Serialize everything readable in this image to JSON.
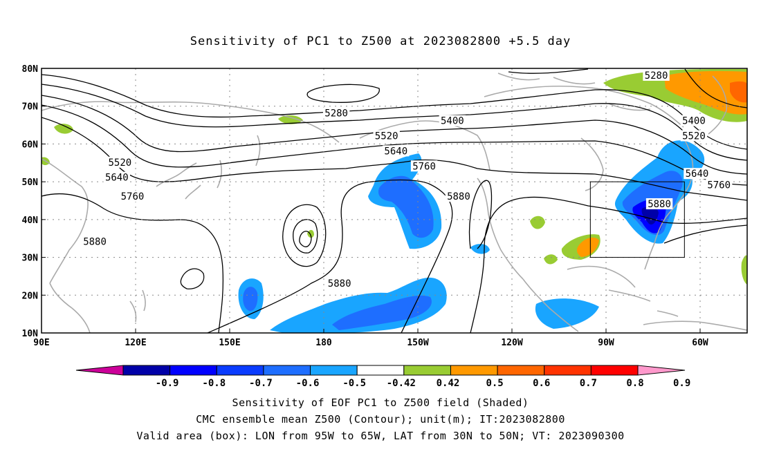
{
  "title": "Sensitivity of PC1 to Z500 at 2023082800 +5.5 day",
  "map": {
    "lon_labels": [
      "90E",
      "120E",
      "150E",
      "180",
      "150W",
      "120W",
      "90W",
      "60W"
    ],
    "lon_values": [
      90,
      120,
      150,
      180,
      210,
      240,
      270,
      300
    ],
    "lat_labels": [
      "80N",
      "70N",
      "60N",
      "50N",
      "40N",
      "30N",
      "20N",
      "10N"
    ],
    "lat_values": [
      80,
      70,
      60,
      50,
      40,
      30,
      20,
      10
    ],
    "lon_range": [
      90,
      315
    ],
    "lat_range": [
      10,
      80
    ],
    "grid": "dotted",
    "coastline_color": "#aaaaaa",
    "contour_color": "#000000",
    "contour_labels": [
      {
        "text": "5280",
        "lon": 184,
        "lat": 68
      },
      {
        "text": "5280",
        "lon": 286,
        "lat": 78
      },
      {
        "text": "5400",
        "lon": 221,
        "lat": 66
      },
      {
        "text": "5400",
        "lon": 298,
        "lat": 66
      },
      {
        "text": "5520",
        "lon": 115,
        "lat": 55
      },
      {
        "text": "5520",
        "lon": 200,
        "lat": 62
      },
      {
        "text": "5520",
        "lon": 298,
        "lat": 62
      },
      {
        "text": "5640",
        "lon": 114,
        "lat": 51
      },
      {
        "text": "5640",
        "lon": 203,
        "lat": 58
      },
      {
        "text": "5640",
        "lon": 299,
        "lat": 52
      },
      {
        "text": "5760",
        "lon": 119,
        "lat": 46
      },
      {
        "text": "5760",
        "lon": 212,
        "lat": 54
      },
      {
        "text": "5760",
        "lon": 306,
        "lat": 49
      },
      {
        "text": "5880",
        "lon": 107,
        "lat": 34
      },
      {
        "text": "5880",
        "lon": 185,
        "lat": 23
      },
      {
        "text": "5880",
        "lon": 223,
        "lat": 46
      },
      {
        "text": "5880",
        "lon": 287,
        "lat": 44
      }
    ],
    "valid_box": {
      "lon_min": 265,
      "lon_max": 295,
      "lat_min": 30,
      "lat_max": 50
    }
  },
  "colorbar": {
    "labels": [
      "-0.9",
      "-0.8",
      "-0.7",
      "-0.6",
      "-0.5",
      "-0.42",
      "0.42",
      "0.5",
      "0.6",
      "0.7",
      "0.8",
      "0.9"
    ],
    "colors": [
      "#0000a8",
      "#0000ff",
      "#0a3cff",
      "#1e6eff",
      "#19a5ff",
      "#ffffff",
      "#99cc33",
      "#ff9900",
      "#ff6600",
      "#ff3300",
      "#ff0000"
    ],
    "low_extend_color": "#cc0099",
    "high_extend_color": "#ff99cc"
  },
  "captions": [
    "Sensitivity of EOF PC1 to Z500 field (Shaded)",
    "CMC ensemble mean Z500 (Contour); unit(m); IT:2023082800",
    "Valid area (box): LON from 95W to 65W, LAT from 30N to 50N; VT: 2023090300"
  ]
}
